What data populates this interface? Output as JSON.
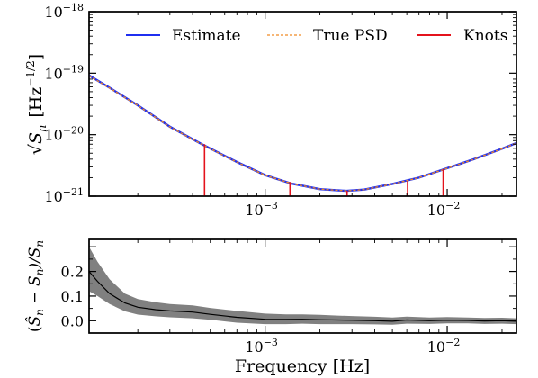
{
  "figure": {
    "xlabel": "Frequency [Hz]"
  },
  "chart_data": [
    {
      "type": "line",
      "panel": "top",
      "yscale": "log",
      "xscale": "log",
      "ylabel": "√S_n [Hz^-1/2]",
      "ylabel_main": "√S",
      "ylabel_sub": "n",
      "ylabel_units": "[Hz",
      "ylabel_exp": "−1/2",
      "ylabel_close": "]",
      "xlim": [
        0.000108,
        0.024
      ],
      "ylim": [
        1e-21,
        1e-18
      ],
      "x_ticks": [
        {
          "value": 0.001,
          "base": "10",
          "exp": "−3"
        },
        {
          "value": 0.01,
          "base": "10",
          "exp": "−2"
        }
      ],
      "y_ticks": [
        {
          "value": 1e-21,
          "base": "10",
          "exp": "−21"
        },
        {
          "value": 1e-20,
          "base": "10",
          "exp": "−20"
        },
        {
          "value": 1e-19,
          "base": "10",
          "exp": "−19"
        },
        {
          "value": 1e-18,
          "base": "10",
          "exp": "−18"
        }
      ],
      "legend": {
        "placement": "top",
        "entries": [
          {
            "label": "Estimate",
            "color": "#1f2ff0",
            "style": "solid"
          },
          {
            "label": "True PSD",
            "color": "#f08a24",
            "style": "dashed"
          },
          {
            "label": "Knots",
            "color": "#e4131c",
            "style": "solid"
          }
        ]
      },
      "series": [
        {
          "name": "Estimate",
          "x": [
            0.000108,
            0.00014,
            0.0002,
            0.0003,
            0.00045,
            0.0007,
            0.001,
            0.0014,
            0.002,
            0.0028,
            0.0035,
            0.005,
            0.007,
            0.01,
            0.014,
            0.02,
            0.024
          ],
          "y": [
            9.2e-20,
            5.8e-20,
            3e-20,
            1.35e-20,
            7e-21,
            3.6e-21,
            2.2e-21,
            1.6e-21,
            1.3e-21,
            1.22e-21,
            1.28e-21,
            1.58e-21,
            2e-21,
            2.85e-21,
            4e-21,
            5.9e-21,
            7.3e-21
          ]
        },
        {
          "name": "True PSD",
          "x": [
            0.000108,
            0.00014,
            0.0002,
            0.0003,
            0.00045,
            0.0007,
            0.001,
            0.0014,
            0.002,
            0.0028,
            0.0035,
            0.005,
            0.007,
            0.01,
            0.014,
            0.02,
            0.024
          ],
          "y": [
            9.1e-20,
            5.75e-20,
            2.98e-20,
            1.34e-20,
            6.95e-21,
            3.58e-21,
            2.19e-21,
            1.6e-21,
            1.3e-21,
            1.22e-21,
            1.28e-21,
            1.57e-21,
            2e-21,
            2.84e-21,
            3.98e-21,
            5.88e-21,
            7.3e-21
          ]
        }
      ],
      "knots": {
        "x": [
          0.000465,
          0.00137,
          0.00282,
          0.00606,
          0.0095
        ],
        "y": [
          7e-21,
          1.7e-21,
          1.22e-21,
          1.75e-21,
          2.75e-21
        ]
      }
    },
    {
      "type": "area",
      "panel": "bottom",
      "xscale": "log",
      "ylabel": "(Ŝ_n − S_n)/S_n",
      "ylabel_parts": {
        "open": "(",
        "hat": "Ŝ",
        "sub1": "n",
        "minus": " − S",
        "sub2": "n",
        "mid": ")/S",
        "sub3": "n"
      },
      "xlim": [
        0.000108,
        0.024
      ],
      "ylim": [
        -0.05,
        0.33
      ],
      "x_ticks": [
        {
          "value": 0.001,
          "base": "10",
          "exp": "−3"
        },
        {
          "value": 0.01,
          "base": "10",
          "exp": "−2"
        }
      ],
      "y_ticks": [
        {
          "value": 0.0,
          "label": "0.0"
        },
        {
          "value": 0.1,
          "label": "0.1"
        },
        {
          "value": 0.2,
          "label": "0.2"
        }
      ],
      "series": [
        {
          "name": "median",
          "x": [
            0.000108,
            0.00012,
            0.00014,
            0.00017,
            0.0002,
            0.00025,
            0.0003,
            0.0004,
            0.0005,
            0.0007,
            0.001,
            0.0013,
            0.0016,
            0.002,
            0.0025,
            0.003,
            0.004,
            0.005,
            0.006,
            0.008,
            0.01,
            0.013,
            0.016,
            0.02,
            0.024
          ],
          "y": [
            0.2,
            0.16,
            0.11,
            0.072,
            0.055,
            0.045,
            0.04,
            0.035,
            0.026,
            0.014,
            0.006,
            0.005,
            0.006,
            0.004,
            0.003,
            0.002,
            0.0,
            -0.002,
            0.003,
            0.0,
            0.002,
            0.001,
            -0.001,
            0.0,
            -0.002
          ]
        }
      ],
      "band": {
        "x": [
          0.000108,
          0.00012,
          0.00014,
          0.00017,
          0.0002,
          0.00025,
          0.0003,
          0.0004,
          0.0005,
          0.0007,
          0.001,
          0.0013,
          0.0016,
          0.002,
          0.0025,
          0.003,
          0.004,
          0.005,
          0.006,
          0.008,
          0.01,
          0.013,
          0.016,
          0.02,
          0.024
        ],
        "lower": [
          0.12,
          0.1,
          0.068,
          0.038,
          0.025,
          0.018,
          0.014,
          0.01,
          0.004,
          -0.008,
          -0.014,
          -0.014,
          -0.012,
          -0.014,
          -0.014,
          -0.014,
          -0.015,
          -0.016,
          -0.012,
          -0.013,
          -0.011,
          -0.011,
          -0.013,
          -0.012,
          -0.014
        ],
        "upper": [
          0.3,
          0.24,
          0.168,
          0.11,
          0.088,
          0.075,
          0.068,
          0.062,
          0.052,
          0.04,
          0.029,
          0.026,
          0.026,
          0.024,
          0.021,
          0.019,
          0.016,
          0.013,
          0.017,
          0.013,
          0.015,
          0.013,
          0.011,
          0.012,
          0.01
        ]
      }
    }
  ]
}
